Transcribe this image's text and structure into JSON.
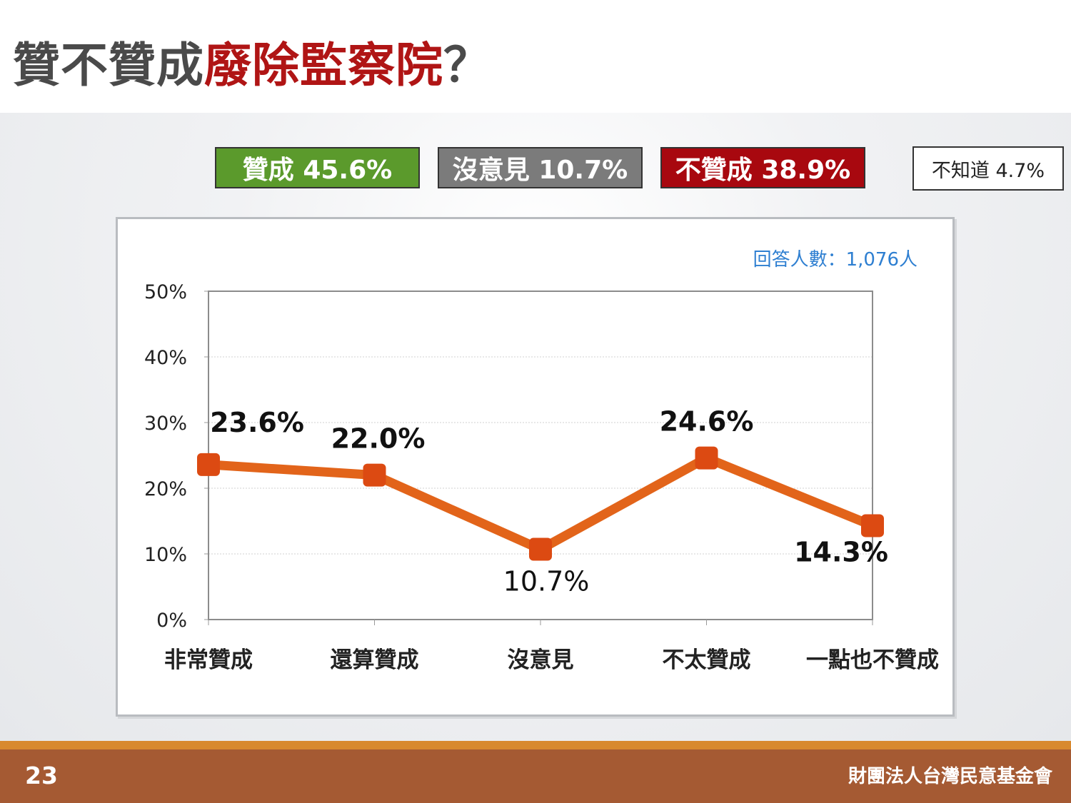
{
  "title": {
    "prefix": "贊不贊成",
    "highlight": "廢除監察院",
    "suffix": "？"
  },
  "summary": {
    "agree": "贊成 45.6%",
    "neutral": "沒意見 10.7%",
    "disagree": "不贊成 38.9%",
    "unknown": "不知道 4.7%"
  },
  "colors": {
    "agree": "#5b9a2c",
    "neutral": "#7b7b7b",
    "disagree": "#a8080f",
    "line": "#e2641a",
    "marker": "#dc4a12",
    "respondents_text": "#2e7fd1",
    "title_highlight": "#b01515",
    "footer": "#a55a33",
    "footer_stripe": "#d8892e"
  },
  "chart_data": {
    "type": "line",
    "respondents": "回答人數：1,076人",
    "categories": [
      "非常贊成",
      "還算贊成",
      "沒意見",
      "不太贊成",
      "一點也不贊成"
    ],
    "values": [
      23.6,
      22.0,
      10.7,
      24.6,
      14.3
    ],
    "data_labels": [
      "23.6%",
      "22.0%",
      "10.7%",
      "24.6%",
      "14.3%"
    ],
    "y_ticks": [
      "0%",
      "10%",
      "20%",
      "30%",
      "40%",
      "50%"
    ],
    "ylim": [
      0,
      50
    ],
    "grid": true,
    "xlabel": "",
    "ylabel": ""
  },
  "footer": {
    "page": "23",
    "org": "財團法人台灣民意基金會"
  }
}
